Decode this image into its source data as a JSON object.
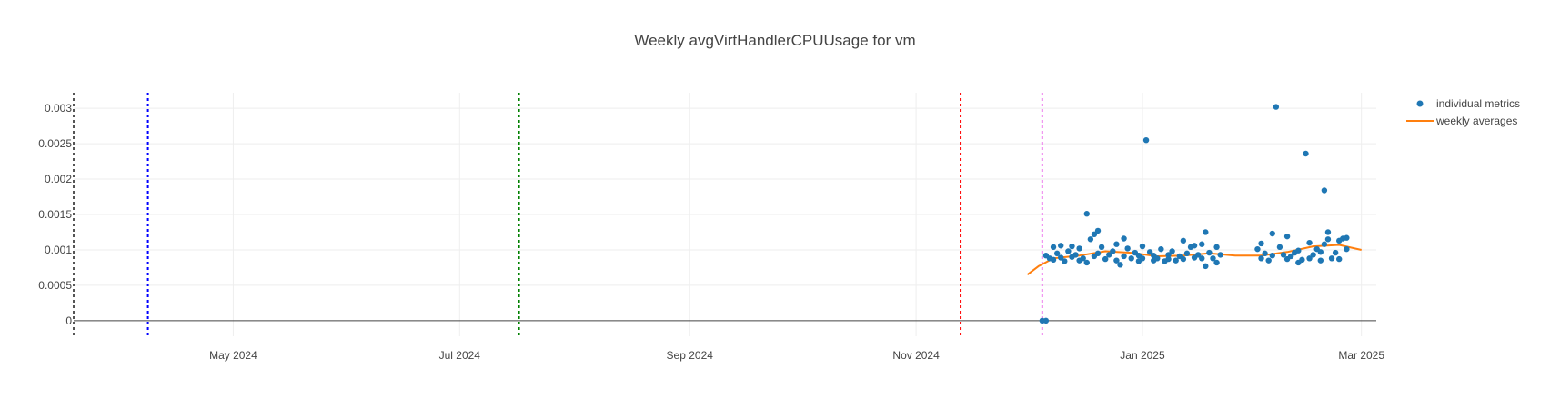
{
  "chart_data": {
    "type": "scatter",
    "title": "Weekly avgVirtHandlerCPUUsage for vm",
    "xlabel": "",
    "ylabel": "",
    "x_range": [
      "2024-03-19",
      "2025-03-05"
    ],
    "ylim": [
      -0.00022,
      0.00322
    ],
    "x_ticks": [
      {
        "date": "2024-05-01",
        "label": "May 2024"
      },
      {
        "date": "2024-07-01",
        "label": "Jul 2024"
      },
      {
        "date": "2024-09-01",
        "label": "Sep 2024"
      },
      {
        "date": "2024-11-01",
        "label": "Nov 2024"
      },
      {
        "date": "2025-01-01",
        "label": "Jan 2025"
      },
      {
        "date": "2025-03-01",
        "label": "Mar 2025"
      }
    ],
    "y_ticks": [
      {
        "value": 0,
        "label": "0"
      },
      {
        "value": 0.0005,
        "label": "0.0005"
      },
      {
        "value": 0.001,
        "label": "0.001"
      },
      {
        "value": 0.0015,
        "label": "0.0015"
      },
      {
        "value": 0.002,
        "label": "0.002"
      },
      {
        "value": 0.0025,
        "label": "0.0025"
      },
      {
        "value": 0.003,
        "label": "0.003"
      }
    ],
    "grid": true,
    "legend_position": "top-right",
    "vertical_lines": [
      {
        "date": "2024-03-19",
        "color": "#555555"
      },
      {
        "date": "2024-04-08",
        "color": "#0000ff"
      },
      {
        "date": "2024-07-17",
        "color": "#008000"
      },
      {
        "date": "2024-11-13",
        "color": "#ff0000"
      },
      {
        "date": "2024-12-05",
        "color": "#ee82ee"
      }
    ],
    "series": [
      {
        "name": "individual metrics",
        "kind": "markers",
        "color": "#1f77b4",
        "points": [
          [
            "2024-12-05",
            0.0
          ],
          [
            "2024-12-06",
            0.0
          ],
          [
            "2024-12-06",
            0.00092
          ],
          [
            "2024-12-07",
            0.00088
          ],
          [
            "2024-12-08",
            0.00104
          ],
          [
            "2024-12-08",
            0.00086
          ],
          [
            "2024-12-09",
            0.00095
          ],
          [
            "2024-12-10",
            0.00106
          ],
          [
            "2024-12-10",
            0.00089
          ],
          [
            "2024-12-11",
            0.00084
          ],
          [
            "2024-12-12",
            0.00098
          ],
          [
            "2024-12-13",
            0.00105
          ],
          [
            "2024-12-13",
            0.0009
          ],
          [
            "2024-12-14",
            0.00093
          ],
          [
            "2024-12-15",
            0.00085
          ],
          [
            "2024-12-15",
            0.00102
          ],
          [
            "2024-12-16",
            0.00088
          ],
          [
            "2024-12-17",
            0.00151
          ],
          [
            "2024-12-17",
            0.00082
          ],
          [
            "2024-12-18",
            0.00115
          ],
          [
            "2024-12-19",
            0.00122
          ],
          [
            "2024-12-19",
            0.00091
          ],
          [
            "2024-12-20",
            0.00127
          ],
          [
            "2024-12-20",
            0.00095
          ],
          [
            "2024-12-21",
            0.00104
          ],
          [
            "2024-12-22",
            0.00087
          ],
          [
            "2024-12-23",
            0.00093
          ],
          [
            "2024-12-24",
            0.00098
          ],
          [
            "2024-12-25",
            0.00085
          ],
          [
            "2024-12-25",
            0.00108
          ],
          [
            "2024-12-26",
            0.00079
          ],
          [
            "2024-12-27",
            0.00091
          ],
          [
            "2024-12-27",
            0.00116
          ],
          [
            "2024-12-28",
            0.00102
          ],
          [
            "2024-12-29",
            0.00088
          ],
          [
            "2024-12-30",
            0.00096
          ],
          [
            "2024-12-31",
            0.00084
          ],
          [
            "2024-12-31",
            0.00092
          ],
          [
            "2025-01-01",
            0.00088
          ],
          [
            "2025-01-01",
            0.00105
          ],
          [
            "2025-01-02",
            0.00255
          ],
          [
            "2025-01-03",
            0.00097
          ],
          [
            "2025-01-04",
            0.00085
          ],
          [
            "2025-01-04",
            0.00092
          ],
          [
            "2025-01-05",
            0.00088
          ],
          [
            "2025-01-06",
            0.00101
          ],
          [
            "2025-01-07",
            0.00084
          ],
          [
            "2025-01-08",
            0.00093
          ],
          [
            "2025-01-08",
            0.00087
          ],
          [
            "2025-01-09",
            0.00098
          ],
          [
            "2025-01-10",
            0.00085
          ],
          [
            "2025-01-11",
            0.00091
          ],
          [
            "2025-01-12",
            0.00113
          ],
          [
            "2025-01-12",
            0.00087
          ],
          [
            "2025-01-13",
            0.00095
          ],
          [
            "2025-01-14",
            0.00104
          ],
          [
            "2025-01-15",
            0.00089
          ],
          [
            "2025-01-15",
            0.00106
          ],
          [
            "2025-01-16",
            0.00093
          ],
          [
            "2025-01-17",
            0.00108
          ],
          [
            "2025-01-17",
            0.00088
          ],
          [
            "2025-01-18",
            0.00125
          ],
          [
            "2025-01-18",
            0.00077
          ],
          [
            "2025-01-19",
            0.00096
          ],
          [
            "2025-01-20",
            0.00088
          ],
          [
            "2025-01-21",
            0.00082
          ],
          [
            "2025-01-21",
            0.00104
          ],
          [
            "2025-01-22",
            0.00093
          ],
          [
            "2025-02-01",
            0.00101
          ],
          [
            "2025-02-02",
            0.00109
          ],
          [
            "2025-02-02",
            0.00088
          ],
          [
            "2025-02-03",
            0.00095
          ],
          [
            "2025-02-04",
            0.00085
          ],
          [
            "2025-02-05",
            0.00092
          ],
          [
            "2025-02-05",
            0.00123
          ],
          [
            "2025-02-06",
            0.00302
          ],
          [
            "2025-02-07",
            0.00104
          ],
          [
            "2025-02-08",
            0.00093
          ],
          [
            "2025-02-09",
            0.00119
          ],
          [
            "2025-02-09",
            0.00087
          ],
          [
            "2025-02-10",
            0.00091
          ],
          [
            "2025-02-11",
            0.00096
          ],
          [
            "2025-02-12",
            0.00082
          ],
          [
            "2025-02-12",
            0.00099
          ],
          [
            "2025-02-13",
            0.00086
          ],
          [
            "2025-02-14",
            0.00236
          ],
          [
            "2025-02-15",
            0.0011
          ],
          [
            "2025-02-15",
            0.00088
          ],
          [
            "2025-02-16",
            0.00093
          ],
          [
            "2025-02-17",
            0.00101
          ],
          [
            "2025-02-18",
            0.00085
          ],
          [
            "2025-02-18",
            0.00097
          ],
          [
            "2025-02-19",
            0.00184
          ],
          [
            "2025-02-19",
            0.00108
          ],
          [
            "2025-02-20",
            0.00125
          ],
          [
            "2025-02-20",
            0.00115
          ],
          [
            "2025-02-21",
            0.00088
          ],
          [
            "2025-02-22",
            0.00096
          ],
          [
            "2025-02-23",
            0.00113
          ],
          [
            "2025-02-23",
            0.00087
          ],
          [
            "2025-02-24",
            0.00116
          ],
          [
            "2025-02-25",
            0.00117
          ],
          [
            "2025-02-25",
            0.00101
          ]
        ]
      },
      {
        "name": "weekly averages",
        "kind": "line",
        "color": "#ff7f0e",
        "points": [
          [
            "2024-12-01",
            0.00065
          ],
          [
            "2024-12-04",
            0.00077
          ],
          [
            "2024-12-08",
            0.00088
          ],
          [
            "2024-12-15",
            0.00092
          ],
          [
            "2024-12-22",
            0.00098
          ],
          [
            "2024-12-29",
            0.00096
          ],
          [
            "2025-01-05",
            0.00091
          ],
          [
            "2025-01-12",
            0.00092
          ],
          [
            "2025-01-19",
            0.00095
          ],
          [
            "2025-01-26",
            0.00092
          ],
          [
            "2025-02-02",
            0.00092
          ],
          [
            "2025-02-09",
            0.00097
          ],
          [
            "2025-02-16",
            0.00105
          ],
          [
            "2025-02-23",
            0.00107
          ],
          [
            "2025-03-01",
            0.001
          ]
        ]
      }
    ]
  }
}
